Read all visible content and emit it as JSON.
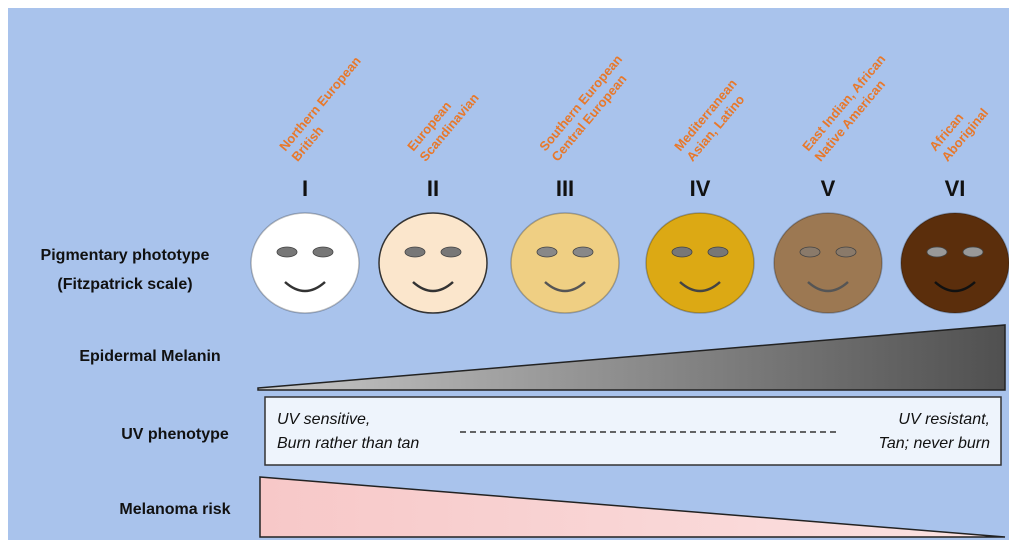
{
  "populations": [
    [
      "Northern European",
      "British"
    ],
    [
      "European",
      "Scandinavian"
    ],
    [
      "Southern European",
      "Central European"
    ],
    [
      "Mediterranean",
      "Asian, Latino"
    ],
    [
      "East Indian, African",
      "Native American"
    ],
    [
      "African",
      "Aboriginal"
    ]
  ],
  "types": [
    "I",
    "II",
    "III",
    "IV",
    "V",
    "VI"
  ],
  "rows": {
    "phototype": [
      "Pigmentary phototype",
      "(Fitzpatrick scale)"
    ],
    "melanin": "Epidermal Melanin",
    "uv": "UV phenotype",
    "melanoma": "Melanoma risk"
  },
  "uv_phenotype": {
    "left": [
      "UV sensitive,",
      "Burn rather than tan"
    ],
    "right": [
      "UV resistant,",
      "Tan; never burn"
    ]
  }
}
